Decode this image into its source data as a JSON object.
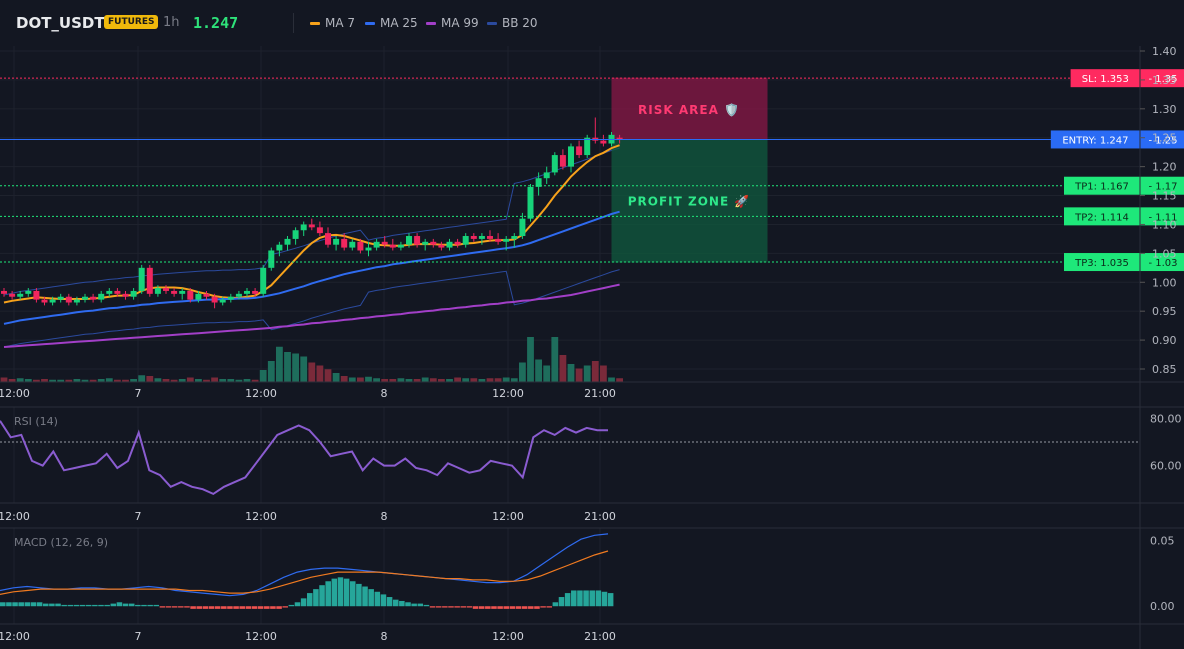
{
  "header": {
    "symbol": "DOT_USDT",
    "badge": "FUTURES",
    "timeframe": "1h",
    "price": "1.247",
    "legend": [
      {
        "label": "MA 7",
        "color": "#f7a21b"
      },
      {
        "label": "MA 25",
        "color": "#2f6bf0"
      },
      {
        "label": "MA 99",
        "color": "#a23fc8"
      },
      {
        "label": "BB 20",
        "color": "#2b4a9e"
      }
    ]
  },
  "colors": {
    "up": "#17d37a",
    "down": "#f0265e",
    "vol_up": "#1e6d5c",
    "vol_down": "#7a2a3a",
    "background": "#131722",
    "grid": "#1e222d"
  },
  "chart_data": [
    {
      "type": "candlestick",
      "panel": "price",
      "x_ticks": [
        "12:00",
        "7",
        "12:00",
        "8",
        "12:00",
        "21:00"
      ],
      "y_ticks": [
        "1.40",
        "1.35",
        "1.30",
        "1.25",
        "1.20",
        "1.15",
        "1.10",
        "1.05",
        "1.00",
        "0.95",
        "0.90",
        "0.85"
      ],
      "ylim": [
        0.83,
        1.41
      ],
      "candles": [
        [
          0.985,
          0.99,
          0.975,
          0.98
        ],
        [
          0.98,
          0.985,
          0.97,
          0.975
        ],
        [
          0.975,
          0.985,
          0.97,
          0.98
        ],
        [
          0.98,
          0.99,
          0.975,
          0.985
        ],
        [
          0.985,
          0.99,
          0.965,
          0.97
        ],
        [
          0.97,
          0.975,
          0.96,
          0.965
        ],
        [
          0.965,
          0.975,
          0.96,
          0.97
        ],
        [
          0.97,
          0.98,
          0.965,
          0.975
        ],
        [
          0.975,
          0.98,
          0.96,
          0.965
        ],
        [
          0.965,
          0.975,
          0.96,
          0.97
        ],
        [
          0.97,
          0.98,
          0.965,
          0.975
        ],
        [
          0.975,
          0.98,
          0.965,
          0.97
        ],
        [
          0.97,
          0.985,
          0.965,
          0.98
        ],
        [
          0.98,
          0.99,
          0.975,
          0.985
        ],
        [
          0.985,
          0.99,
          0.975,
          0.98
        ],
        [
          0.98,
          0.985,
          0.97,
          0.975
        ],
        [
          0.975,
          0.99,
          0.97,
          0.985
        ],
        [
          0.985,
          1.03,
          0.98,
          1.025
        ],
        [
          1.025,
          1.03,
          0.975,
          0.98
        ],
        [
          0.98,
          0.995,
          0.975,
          0.99
        ],
        [
          0.99,
          0.995,
          0.98,
          0.985
        ],
        [
          0.985,
          0.99,
          0.975,
          0.98
        ],
        [
          0.98,
          0.99,
          0.97,
          0.985
        ],
        [
          0.985,
          0.99,
          0.965,
          0.97
        ],
        [
          0.97,
          0.985,
          0.965,
          0.98
        ],
        [
          0.98,
          0.985,
          0.97,
          0.975
        ],
        [
          0.975,
          0.98,
          0.955,
          0.965
        ],
        [
          0.965,
          0.975,
          0.96,
          0.97
        ],
        [
          0.97,
          0.98,
          0.965,
          0.975
        ],
        [
          0.975,
          0.985,
          0.97,
          0.98
        ],
        [
          0.98,
          0.99,
          0.975,
          0.985
        ],
        [
          0.985,
          0.99,
          0.975,
          0.98
        ],
        [
          0.98,
          1.03,
          0.975,
          1.025
        ],
        [
          1.025,
          1.06,
          1.02,
          1.055
        ],
        [
          1.055,
          1.07,
          1.045,
          1.065
        ],
        [
          1.065,
          1.08,
          1.055,
          1.075
        ],
        [
          1.075,
          1.095,
          1.065,
          1.09
        ],
        [
          1.09,
          1.105,
          1.08,
          1.1
        ],
        [
          1.1,
          1.11,
          1.09,
          1.095
        ],
        [
          1.095,
          1.105,
          1.08,
          1.085
        ],
        [
          1.085,
          1.095,
          1.06,
          1.065
        ],
        [
          1.065,
          1.08,
          1.055,
          1.075
        ],
        [
          1.075,
          1.085,
          1.055,
          1.06
        ],
        [
          1.06,
          1.075,
          1.055,
          1.07
        ],
        [
          1.07,
          1.075,
          1.05,
          1.055
        ],
        [
          1.055,
          1.07,
          1.045,
          1.06
        ],
        [
          1.06,
          1.075,
          1.055,
          1.07
        ],
        [
          1.07,
          1.08,
          1.06,
          1.065
        ],
        [
          1.065,
          1.075,
          1.055,
          1.06
        ],
        [
          1.06,
          1.07,
          1.055,
          1.065
        ],
        [
          1.065,
          1.085,
          1.06,
          1.08
        ],
        [
          1.08,
          1.085,
          1.06,
          1.065
        ],
        [
          1.065,
          1.075,
          1.055,
          1.07
        ],
        [
          1.07,
          1.075,
          1.06,
          1.065
        ],
        [
          1.065,
          1.07,
          1.055,
          1.06
        ],
        [
          1.06,
          1.075,
          1.055,
          1.07
        ],
        [
          1.07,
          1.075,
          1.06,
          1.065
        ],
        [
          1.065,
          1.085,
          1.06,
          1.08
        ],
        [
          1.08,
          1.085,
          1.07,
          1.075
        ],
        [
          1.075,
          1.085,
          1.065,
          1.08
        ],
        [
          1.08,
          1.09,
          1.07,
          1.075
        ],
        [
          1.075,
          1.085,
          1.065,
          1.07
        ],
        [
          1.07,
          1.08,
          1.055,
          1.075
        ],
        [
          1.075,
          1.085,
          1.06,
          1.08
        ],
        [
          1.08,
          1.12,
          1.075,
          1.11
        ],
        [
          1.11,
          1.17,
          1.105,
          1.165
        ],
        [
          1.165,
          1.19,
          1.15,
          1.18
        ],
        [
          1.18,
          1.2,
          1.17,
          1.19
        ],
        [
          1.19,
          1.225,
          1.185,
          1.22
        ],
        [
          1.22,
          1.23,
          1.195,
          1.2
        ],
        [
          1.2,
          1.24,
          1.19,
          1.235
        ],
        [
          1.235,
          1.245,
          1.215,
          1.22
        ],
        [
          1.22,
          1.255,
          1.215,
          1.25
        ],
        [
          1.25,
          1.285,
          1.24,
          1.245
        ],
        [
          1.245,
          1.255,
          1.235,
          1.24
        ],
        [
          1.24,
          1.26,
          1.235,
          1.255
        ],
        [
          1.25,
          1.255,
          1.24,
          1.247
        ]
      ],
      "volume": [
        6,
        4,
        5,
        4,
        3,
        4,
        3,
        3,
        3,
        4,
        3,
        3,
        4,
        5,
        3,
        3,
        4,
        9,
        8,
        5,
        4,
        3,
        4,
        6,
        4,
        3,
        6,
        4,
        4,
        3,
        4,
        3,
        16,
        28,
        47,
        40,
        38,
        34,
        26,
        22,
        17,
        12,
        8,
        6,
        6,
        7,
        5,
        4,
        4,
        5,
        4,
        4,
        6,
        5,
        4,
        4,
        6,
        5,
        5,
        4,
        5,
        5,
        6,
        5,
        26,
        60,
        30,
        22,
        60,
        36,
        24,
        18,
        22,
        28,
        22,
        6,
        5
      ],
      "series": [
        {
          "name": "MA 7",
          "values": [
            0.965,
            0.968,
            0.97,
            0.972,
            0.974,
            0.973,
            0.972,
            0.971,
            0.971,
            0.971,
            0.971,
            0.972,
            0.973,
            0.975,
            0.977,
            0.977,
            0.978,
            0.985,
            0.99,
            0.991,
            0.991,
            0.991,
            0.99,
            0.987,
            0.983,
            0.98,
            0.976,
            0.974,
            0.973,
            0.973,
            0.975,
            0.977,
            0.985,
            0.995,
            1.01,
            1.025,
            1.04,
            1.055,
            1.068,
            1.077,
            1.081,
            1.082,
            1.08,
            1.076,
            1.072,
            1.068,
            1.065,
            1.064,
            1.063,
            1.063,
            1.065,
            1.066,
            1.066,
            1.066,
            1.065,
            1.065,
            1.065,
            1.067,
            1.068,
            1.07,
            1.072,
            1.073,
            1.073,
            1.074,
            1.082,
            1.098,
            1.114,
            1.131,
            1.15,
            1.166,
            1.183,
            1.196,
            1.208,
            1.218,
            1.224,
            1.232,
            1.237
          ]
        },
        {
          "name": "MA 25",
          "values": [
            0.928,
            0.931,
            0.934,
            0.936,
            0.938,
            0.94,
            0.942,
            0.944,
            0.946,
            0.948,
            0.95,
            0.951,
            0.953,
            0.955,
            0.956,
            0.958,
            0.959,
            0.961,
            0.962,
            0.964,
            0.965,
            0.966,
            0.967,
            0.968,
            0.969,
            0.97,
            0.97,
            0.971,
            0.971,
            0.972,
            0.972,
            0.973,
            0.975,
            0.978,
            0.981,
            0.985,
            0.989,
            0.993,
            0.998,
            1.002,
            1.006,
            1.01,
            1.014,
            1.017,
            1.02,
            1.023,
            1.026,
            1.028,
            1.031,
            1.033,
            1.035,
            1.037,
            1.039,
            1.041,
            1.043,
            1.045,
            1.047,
            1.049,
            1.051,
            1.053,
            1.055,
            1.057,
            1.059,
            1.061,
            1.064,
            1.068,
            1.073,
            1.078,
            1.083,
            1.088,
            1.093,
            1.098,
            1.103,
            1.108,
            1.113,
            1.118,
            1.122
          ]
        },
        {
          "name": "MA 99",
          "values": [
            0.888,
            0.889,
            0.89,
            0.891,
            0.892,
            0.893,
            0.894,
            0.895,
            0.896,
            0.897,
            0.898,
            0.899,
            0.9,
            0.901,
            0.902,
            0.903,
            0.904,
            0.905,
            0.906,
            0.907,
            0.908,
            0.909,
            0.91,
            0.911,
            0.912,
            0.913,
            0.914,
            0.915,
            0.916,
            0.917,
            0.918,
            0.919,
            0.92,
            0.921,
            0.923,
            0.924,
            0.926,
            0.927,
            0.929,
            0.93,
            0.932,
            0.933,
            0.935,
            0.936,
            0.938,
            0.939,
            0.941,
            0.942,
            0.944,
            0.945,
            0.947,
            0.948,
            0.95,
            0.951,
            0.953,
            0.954,
            0.956,
            0.957,
            0.959,
            0.96,
            0.962,
            0.963,
            0.965,
            0.966,
            0.968,
            0.969,
            0.971,
            0.972,
            0.974,
            0.976,
            0.978,
            0.981,
            0.984,
            0.987,
            0.99,
            0.993,
            0.996
          ]
        }
      ],
      "levels": [
        {
          "label": "SL: 1.353",
          "axis_label": "1.35",
          "value": 1.353,
          "color": "#ff2a60",
          "style": "dotted"
        },
        {
          "label": "ENTRY: 1.247",
          "axis_label": "1.25",
          "value": 1.247,
          "color": "#2a6bf5",
          "style": "solid"
        },
        {
          "label": "TP1: 1.167",
          "axis_label": "1.17",
          "value": 1.167,
          "color": "#1ee87a",
          "style": "dotted"
        },
        {
          "label": "TP2: 1.114",
          "axis_label": "1.11",
          "value": 1.114,
          "color": "#1ee87a",
          "style": "dotted"
        },
        {
          "label": "TP3: 1.035",
          "axis_label": "1.03",
          "value": 1.035,
          "color": "#1ee87a",
          "style": "dotted"
        }
      ],
      "zones": [
        {
          "label": "RISK AREA 🛡️",
          "top": 1.353,
          "bottom": 1.247,
          "color": "#8a1747",
          "text_color": "#ff3a72"
        },
        {
          "label": "PROFIT ZONE 🚀",
          "top": 1.247,
          "bottom": 1.035,
          "color": "#0f5a3e",
          "text_color": "#2ee88a"
        }
      ]
    },
    {
      "type": "line",
      "panel": "rsi",
      "title": "RSI (14)",
      "ylim": [
        45,
        84
      ],
      "y_ticks": [
        "80.00",
        "60.00"
      ],
      "overbought": 70,
      "series": [
        {
          "name": "RSI (14)",
          "color": "#8a5cd0",
          "values": [
            79,
            72,
            73,
            62,
            60,
            66,
            58,
            59,
            60,
            61,
            65,
            59,
            62,
            74,
            58,
            56,
            51,
            53,
            51,
            50,
            48,
            51,
            53,
            55,
            61,
            67,
            73,
            75,
            77,
            75,
            70,
            64,
            65,
            66,
            58,
            63,
            60,
            60,
            63,
            59,
            58,
            56,
            61,
            59,
            57,
            58,
            62,
            61,
            60,
            55,
            72,
            75,
            73,
            76,
            74,
            76,
            75,
            75
          ]
        }
      ]
    },
    {
      "type": "line",
      "panel": "macd",
      "title": "MACD (12, 26, 9)",
      "ylim": [
        -0.012,
        0.058
      ],
      "y_ticks": [
        "0.05",
        "0.00"
      ],
      "series": [
        {
          "name": "MACD",
          "color": "#2f6bf0",
          "values": [
            0.012,
            0.014,
            0.015,
            0.014,
            0.013,
            0.013,
            0.014,
            0.014,
            0.013,
            0.013,
            0.014,
            0.015,
            0.014,
            0.012,
            0.011,
            0.01,
            0.009,
            0.008,
            0.009,
            0.012,
            0.017,
            0.022,
            0.026,
            0.028,
            0.029,
            0.029,
            0.028,
            0.027,
            0.026,
            0.025,
            0.024,
            0.023,
            0.022,
            0.021,
            0.02,
            0.019,
            0.018,
            0.018,
            0.019,
            0.024,
            0.031,
            0.038,
            0.045,
            0.051,
            0.054,
            0.055
          ]
        },
        {
          "name": "Signal",
          "color": "#f07a20",
          "values": [
            0.009,
            0.011,
            0.012,
            0.013,
            0.013,
            0.013,
            0.013,
            0.013,
            0.013,
            0.013,
            0.013,
            0.013,
            0.013,
            0.013,
            0.012,
            0.012,
            0.011,
            0.01,
            0.01,
            0.011,
            0.013,
            0.016,
            0.019,
            0.022,
            0.024,
            0.026,
            0.026,
            0.026,
            0.026,
            0.025,
            0.024,
            0.023,
            0.022,
            0.021,
            0.021,
            0.02,
            0.02,
            0.019,
            0.019,
            0.02,
            0.023,
            0.027,
            0.031,
            0.035,
            0.039,
            0.042
          ]
        }
      ],
      "histogram": [
        0.003,
        0.003,
        0.003,
        0.003,
        0.003,
        0.003,
        0.003,
        0.002,
        0.002,
        0.002,
        0.001,
        0.001,
        0.001,
        0.001,
        0.001,
        0.001,
        0.001,
        0.001,
        0.002,
        0.003,
        0.002,
        0.002,
        0.001,
        0.001,
        0.001,
        0.001,
        -0.001,
        -0.001,
        -0.001,
        -0.001,
        -0.001,
        -0.002,
        -0.002,
        -0.002,
        -0.002,
        -0.002,
        -0.002,
        -0.002,
        -0.002,
        -0.002,
        -0.002,
        -0.002,
        -0.002,
        -0.002,
        -0.002,
        -0.002,
        -0.001,
        0.001,
        0.003,
        0.006,
        0.01,
        0.013,
        0.016,
        0.019,
        0.021,
        0.022,
        0.021,
        0.019,
        0.017,
        0.015,
        0.013,
        0.011,
        0.009,
        0.007,
        0.005,
        0.004,
        0.003,
        0.002,
        0.002,
        0.001,
        -0.001,
        -0.001,
        -0.001,
        -0.001,
        -0.001,
        -0.001,
        -0.001,
        -0.002,
        -0.002,
        -0.002,
        -0.002,
        -0.002,
        -0.002,
        -0.002,
        -0.002,
        -0.002,
        -0.002,
        -0.002,
        -0.001,
        -0.001,
        0.003,
        0.007,
        0.01,
        0.012,
        0.012,
        0.012,
        0.012,
        0.012,
        0.011,
        0.01
      ]
    }
  ]
}
